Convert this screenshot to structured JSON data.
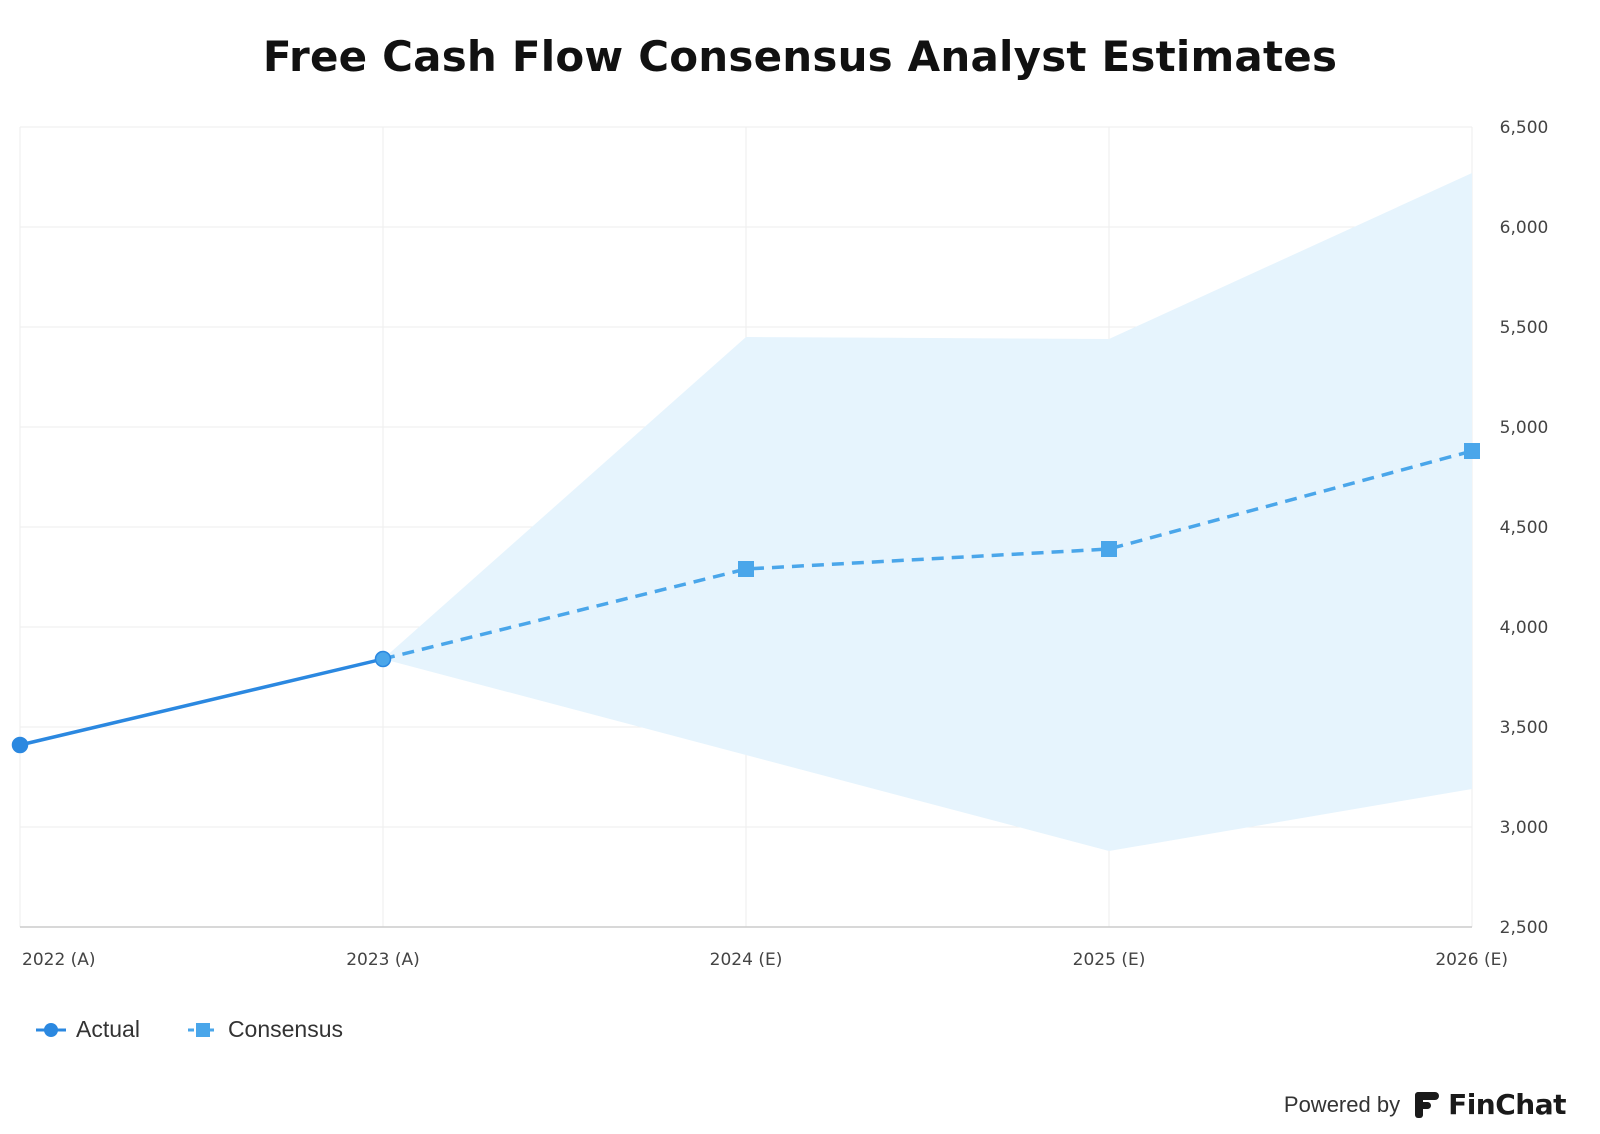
{
  "chart_data": {
    "type": "line",
    "title": "Free Cash Flow Consensus Analyst Estimates",
    "categories": [
      "2022 (A)",
      "2023 (A)",
      "2024 (E)",
      "2025 (E)",
      "2026 (E)"
    ],
    "series": [
      {
        "name": "Actual",
        "values": [
          3410,
          3840,
          null,
          null,
          null
        ],
        "color": "#2b88e0",
        "style": "solid",
        "marker": "circle"
      },
      {
        "name": "Consensus",
        "values": [
          null,
          3840,
          4290,
          4390,
          4880
        ],
        "color": "#4aa6ea",
        "style": "dashed",
        "marker": "square"
      }
    ],
    "range_band": {
      "upper": [
        null,
        3840,
        5450,
        5440,
        6270
      ],
      "lower": [
        null,
        3840,
        3360,
        2880,
        3190
      ],
      "color": "#e6f4fd"
    },
    "ylim": [
      2500,
      6500
    ],
    "yticks": [
      "2,500",
      "3,000",
      "3,500",
      "4,000",
      "4,500",
      "5,000",
      "5,500",
      "6,000",
      "6,500"
    ],
    "ytick_values": [
      2500,
      3000,
      3500,
      4000,
      4500,
      5000,
      5500,
      6000,
      6500
    ],
    "y_axis_side": "right",
    "grid": true,
    "legend_position": "bottom-left"
  },
  "footer": {
    "powered_by": "Powered by",
    "brand": "FinChat",
    "brand_icon": "finchat-logo-icon"
  }
}
